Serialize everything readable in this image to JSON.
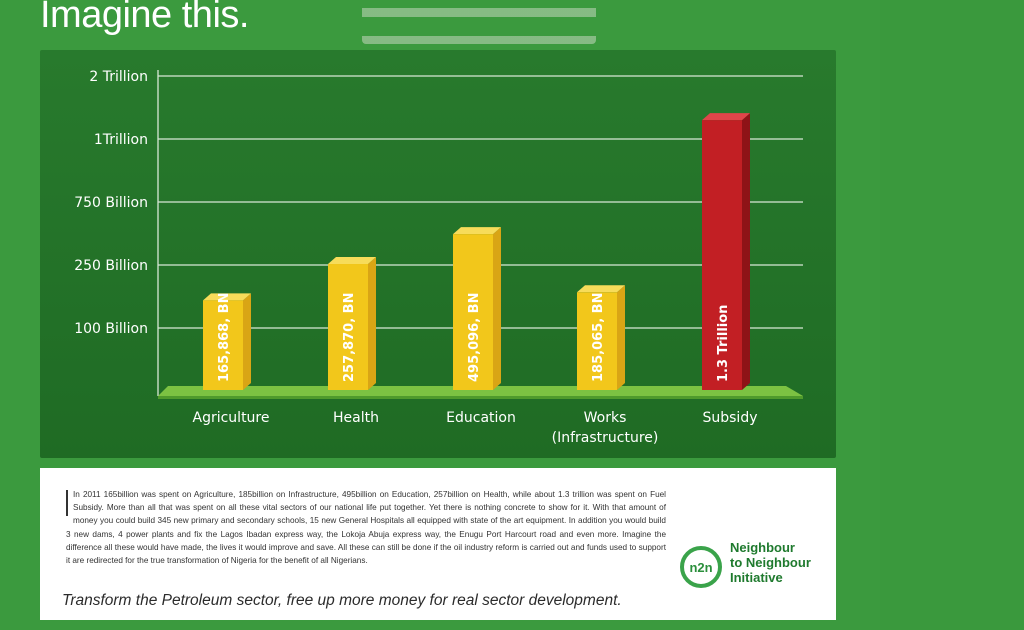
{
  "headline": "Imagine this.",
  "colors": {
    "background": "#3b9a3e",
    "panel": "#247329",
    "bar_gold": "#f2c71b",
    "bar_red": "#c21f24",
    "floor": "#7cc242"
  },
  "chart_data": {
    "type": "bar",
    "title": "",
    "xlabel": "",
    "ylabel": "",
    "y_tick_labels": [
      "2 Trillion",
      "1Trillion",
      "750 Billion",
      "250 Billion",
      "100 Billion"
    ],
    "categories": [
      "Agriculture",
      "Health",
      "Education",
      "Works\n(Infrastructure)",
      "Subsidy"
    ],
    "category_lines": [
      [
        "Agriculture"
      ],
      [
        "Health"
      ],
      [
        "Education"
      ],
      [
        "Works",
        "(Infrastructure)"
      ],
      [
        "Subsidy"
      ]
    ],
    "bar_labels": [
      "165,868, BN",
      "257,870, BN",
      "495,096, BN",
      "185,065, BN",
      "1.3 Trillion"
    ],
    "values_bn": [
      165.868,
      257.87,
      495.096,
      185.065,
      1300
    ],
    "tick_values_bn": [
      2000,
      1000,
      750,
      250,
      100
    ],
    "bar_colors": [
      "gold",
      "gold",
      "gold",
      "gold",
      "red"
    ],
    "grid": true
  },
  "info": {
    "paragraph": "In 2011 165billion was spent on Agriculture, 185billion on Infrastructure, 495billion on Education, 257billion on Health, while about 1.3 trillion was spent on Fuel Subsidy. More than all that was spent on all these vital sectors of our national life put together. Yet there is nothing concrete to show for it. With that amount of money you could build 345 new primary and secondary schools, 15 new General Hospitals all equipped with state of the art equipment. In addition you would build 3 new dams, 4 power plants and fix the Lagos Ibadan express way, the Lokoja Abuja express way, the Enugu Port Harcourt road and even more.  Imagine the difference all these would have made, the lives it would improve and save. All these can still be done if the oil industry reform is carried out and funds used to support it are redirected for the true transformation of Nigeria for the benefit of all Nigerians.",
    "tagline": "Transform the Petroleum sector, free up more money for real sector development."
  },
  "logo": {
    "mark": "n2n",
    "line1": "Neighbour",
    "line2": "to Neighbour",
    "line3": "Initiative"
  }
}
